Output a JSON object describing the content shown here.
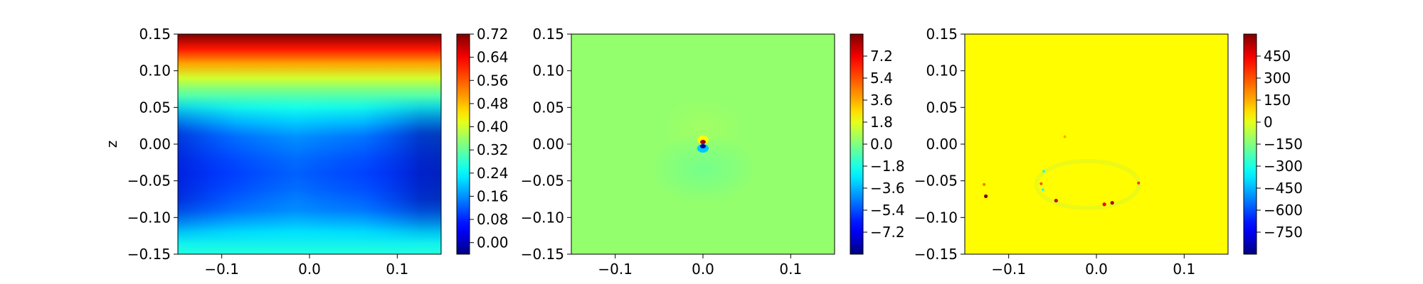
{
  "chart_data": [
    {
      "type": "heatmap",
      "panel": "left",
      "xlabel": "",
      "ylabel": "z",
      "xlim": [
        -0.15,
        0.15
      ],
      "ylim": [
        -0.15,
        0.15
      ],
      "x_ticks": [
        "−0.1",
        "0.0",
        "0.1"
      ],
      "x_tick_values": [
        -0.1,
        0.0,
        0.1
      ],
      "y_ticks": [
        "0.15",
        "0.10",
        "0.05",
        "0.00",
        "−0.05",
        "−0.10",
        "−0.15"
      ],
      "y_tick_values": [
        0.15,
        0.1,
        0.05,
        0.0,
        -0.05,
        -0.1,
        -0.15
      ],
      "colormap": "jet",
      "clim": [
        -0.04,
        0.72
      ],
      "colorbar_ticks": [
        "0.72",
        "0.64",
        "0.56",
        "0.48",
        "0.40",
        "0.32",
        "0.24",
        "0.16",
        "0.08",
        "0.00"
      ],
      "colorbar_tick_values": [
        0.72,
        0.64,
        0.56,
        0.48,
        0.4,
        0.32,
        0.24,
        0.16,
        0.08,
        0.0
      ],
      "grid": false
    },
    {
      "type": "heatmap",
      "panel": "middle",
      "xlabel": "",
      "ylabel": "",
      "xlim": [
        -0.15,
        0.15
      ],
      "ylim": [
        -0.15,
        0.15
      ],
      "x_ticks": [
        "−0.1",
        "0.0",
        "0.1"
      ],
      "x_tick_values": [
        -0.1,
        0.0,
        0.1
      ],
      "y_ticks": [
        "0.15",
        "0.10",
        "0.05",
        "0.00",
        "−0.05",
        "−0.10",
        "−0.15"
      ],
      "y_tick_values": [
        0.15,
        0.1,
        0.05,
        0.0,
        -0.05,
        -0.1,
        -0.15
      ],
      "colormap": "jet",
      "clim": [
        -9.0,
        9.0
      ],
      "colorbar_ticks": [
        "7.2",
        "5.4",
        "3.6",
        "1.8",
        "0.0",
        "−1.8",
        "−3.6",
        "−5.4",
        "−7.2"
      ],
      "colorbar_tick_values": [
        7.2,
        5.4,
        3.6,
        1.8,
        0.0,
        -1.8,
        -3.6,
        -5.4,
        -7.2
      ],
      "grid": false
    },
    {
      "type": "heatmap",
      "panel": "right",
      "xlabel": "",
      "ylabel": "",
      "xlim": [
        -0.15,
        0.15
      ],
      "ylim": [
        -0.15,
        0.15
      ],
      "x_ticks": [
        "−0.1",
        "0.0",
        "0.1"
      ],
      "x_tick_values": [
        -0.1,
        0.0,
        0.1
      ],
      "y_ticks": [
        "0.15",
        "0.10",
        "0.05",
        "0.00",
        "−0.05",
        "−0.10",
        "−0.15"
      ],
      "y_tick_values": [
        0.15,
        0.1,
        0.05,
        0.0,
        -0.05,
        -0.1,
        -0.15
      ],
      "colormap": "jet",
      "clim": [
        -900,
        600
      ],
      "colorbar_ticks": [
        "450",
        "300",
        "150",
        "0",
        "−150",
        "−300",
        "−450",
        "−600",
        "−750"
      ],
      "colorbar_tick_values": [
        450,
        300,
        150,
        0,
        -150,
        -300,
        -450,
        -600,
        -750
      ],
      "grid": false,
      "hotspots": [
        {
          "x": -0.126,
          "z": -0.071,
          "value": 600
        },
        {
          "x": -0.046,
          "z": -0.077,
          "value": 500
        },
        {
          "x": 0.018,
          "z": -0.08,
          "value": 550
        },
        {
          "x": 0.009,
          "z": -0.082,
          "value": 450
        },
        {
          "x": 0.048,
          "z": -0.053,
          "value": 350
        },
        {
          "x": -0.063,
          "z": -0.054,
          "value": 300
        },
        {
          "x": -0.06,
          "z": -0.037,
          "value": -300
        },
        {
          "x": -0.061,
          "z": -0.062,
          "value": -250
        },
        {
          "x": -0.128,
          "z": -0.055,
          "value": 250
        },
        {
          "x": -0.036,
          "z": 0.01,
          "value": 150
        }
      ]
    }
  ]
}
